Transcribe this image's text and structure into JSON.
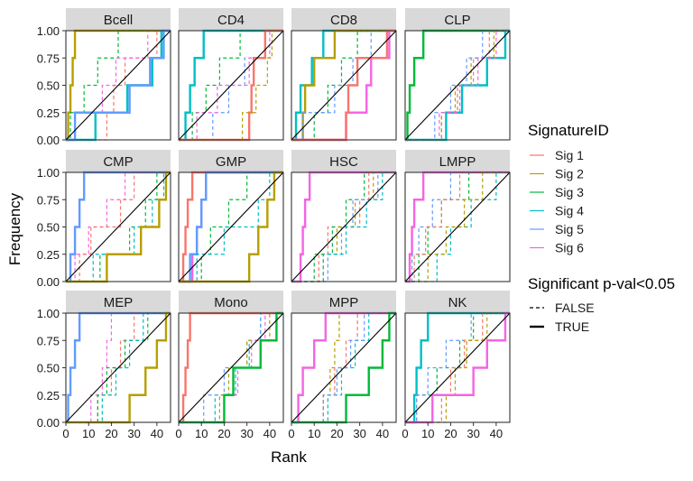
{
  "chart_data": {
    "type": "line",
    "subtype": "step",
    "facet_layout": "3 rows x 4 columns, shared axes",
    "xlabel": "Rank",
    "ylabel": "Frequency",
    "xlim": [
      0,
      46
    ],
    "ylim": [
      0,
      1
    ],
    "x_ticks": [
      0,
      10,
      20,
      30,
      40
    ],
    "y_ticks": [
      0,
      0.25,
      0.5,
      0.75,
      1
    ],
    "y_tick_labels": [
      "0.00",
      "0.25",
      "0.50",
      "0.75",
      "1.00"
    ],
    "reference_line": "diagonal y = x/46",
    "legend_color": {
      "title": "SignatureID",
      "entries": [
        {
          "name": "Sig 1",
          "color": "#F8766D"
        },
        {
          "name": "Sig 2",
          "color": "#B79F00"
        },
        {
          "name": "Sig 3",
          "color": "#00BA38"
        },
        {
          "name": "Sig 4",
          "color": "#00BFC4"
        },
        {
          "name": "Sig 5",
          "color": "#619CFF"
        },
        {
          "name": "Sig 6",
          "color": "#F564E3"
        }
      ]
    },
    "legend_linetype": {
      "title": "Significant p-val<0.05",
      "entries": [
        {
          "name": "FALSE",
          "style": "dashed"
        },
        {
          "name": "TRUE",
          "style": "solid"
        }
      ]
    },
    "panels": [
      {
        "name": "Bcell",
        "series": [
          {
            "sig": 2,
            "significant": true,
            "steps": [
              1,
              2,
              3,
              4
            ]
          },
          {
            "sig": 3,
            "significant": false,
            "steps": [
              2,
              8,
              14,
              23
            ]
          },
          {
            "sig": 1,
            "significant": false,
            "steps": [
              18,
              21,
              26,
              40
            ]
          },
          {
            "sig": 6,
            "significant": false,
            "steps": [
              13,
              16,
              22,
              36
            ]
          },
          {
            "sig": 4,
            "significant": true,
            "steps": [
              13,
              27,
              38,
              42
            ]
          },
          {
            "sig": 5,
            "significant": true,
            "steps": [
              4,
              28,
              37,
              43
            ]
          }
        ]
      },
      {
        "name": "CD4",
        "series": [
          {
            "sig": 4,
            "significant": true,
            "steps": [
              3,
              5,
              7,
              11
            ]
          },
          {
            "sig": 3,
            "significant": false,
            "steps": [
              6,
              12,
              18,
              27
            ]
          },
          {
            "sig": 5,
            "significant": false,
            "steps": [
              15,
              22,
              29,
              38
            ]
          },
          {
            "sig": 6,
            "significant": false,
            "steps": [
              8,
              17,
              31,
              40
            ]
          },
          {
            "sig": 1,
            "significant": true,
            "steps": [
              31,
              32,
              33,
              38
            ]
          },
          {
            "sig": 2,
            "significant": false,
            "steps": [
              28,
              34,
              39,
              41
            ]
          }
        ]
      },
      {
        "name": "CD8",
        "series": [
          {
            "sig": 4,
            "significant": true,
            "steps": [
              2,
              4,
              9,
              14
            ]
          },
          {
            "sig": 2,
            "significant": true,
            "steps": [
              5,
              6,
              10,
              19
            ]
          },
          {
            "sig": 3,
            "significant": false,
            "steps": [
              10,
              16,
              22,
              29
            ]
          },
          {
            "sig": 5,
            "significant": false,
            "steps": [
              5,
              19,
              27,
              35
            ]
          },
          {
            "sig": 6,
            "significant": true,
            "steps": [
              24,
              33,
              35,
              43
            ]
          },
          {
            "sig": 1,
            "significant": true,
            "steps": [
              24,
              25,
              29,
              42
            ]
          }
        ]
      },
      {
        "name": "CLP",
        "series": [
          {
            "sig": 3,
            "significant": true,
            "steps": [
              1,
              2,
              4,
              8
            ]
          },
          {
            "sig": 4,
            "significant": true,
            "steps": [
              18,
              25,
              36,
              44
            ]
          },
          {
            "sig": 1,
            "significant": false,
            "steps": [
              16,
              23,
              30,
              37
            ]
          },
          {
            "sig": 2,
            "significant": false,
            "steps": [
              16,
              22,
              29,
              39
            ]
          },
          {
            "sig": 5,
            "significant": false,
            "steps": [
              13,
              20,
              27,
              34
            ]
          },
          {
            "sig": 6,
            "significant": false,
            "steps": [
              15,
              24,
              32,
              40
            ]
          }
        ]
      },
      {
        "name": "CMP",
        "series": [
          {
            "sig": 5,
            "significant": true,
            "steps": [
              2,
              4,
              6,
              8
            ]
          },
          {
            "sig": 6,
            "significant": false,
            "steps": [
              4,
              10,
              18,
              26
            ]
          },
          {
            "sig": 1,
            "significant": false,
            "steps": [
              6,
              11,
              24,
              30
            ]
          },
          {
            "sig": 3,
            "significant": false,
            "steps": [
              15,
              28,
              35,
              40
            ]
          },
          {
            "sig": 4,
            "significant": false,
            "steps": [
              12,
              30,
              38,
              43
            ]
          },
          {
            "sig": 2,
            "significant": true,
            "steps": [
              18,
              33,
              41,
              44
            ]
          }
        ]
      },
      {
        "name": "GMP",
        "series": [
          {
            "sig": 1,
            "significant": true,
            "steps": [
              2,
              3,
              4,
              6
            ]
          },
          {
            "sig": 6,
            "significant": true,
            "steps": [
              6,
              8,
              10,
              12
            ]
          },
          {
            "sig": 5,
            "significant": true,
            "steps": [
              5,
              8,
              10,
              12
            ]
          },
          {
            "sig": 3,
            "significant": false,
            "steps": [
              10,
              14,
              22,
              30
            ]
          },
          {
            "sig": 4,
            "significant": false,
            "steps": [
              8,
              20,
              35,
              40
            ]
          },
          {
            "sig": 2,
            "significant": true,
            "steps": [
              31,
              35,
              39,
              42
            ]
          }
        ]
      },
      {
        "name": "HSC",
        "series": [
          {
            "sig": 6,
            "significant": true,
            "steps": [
              4,
              5,
              6,
              8
            ]
          },
          {
            "sig": 1,
            "significant": false,
            "steps": [
              12,
              16,
              30,
              34
            ]
          },
          {
            "sig": 3,
            "significant": false,
            "steps": [
              10,
              18,
              24,
              32
            ]
          },
          {
            "sig": 2,
            "significant": false,
            "steps": [
              14,
              20,
              28,
              36
            ]
          },
          {
            "sig": 5,
            "significant": false,
            "steps": [
              16,
              22,
              27,
              38
            ]
          },
          {
            "sig": 4,
            "significant": false,
            "steps": [
              14,
              24,
              33,
              40
            ]
          }
        ]
      },
      {
        "name": "LMPP",
        "series": [
          {
            "sig": 6,
            "significant": true,
            "steps": [
              2,
              3,
              4,
              8
            ]
          },
          {
            "sig": 5,
            "significant": false,
            "steps": [
              3,
              6,
              12,
              20
            ]
          },
          {
            "sig": 3,
            "significant": false,
            "steps": [
              6,
              10,
              16,
              28
            ]
          },
          {
            "sig": 1,
            "significant": false,
            "steps": [
              4,
              9,
              16,
              24
            ]
          },
          {
            "sig": 4,
            "significant": false,
            "steps": [
              14,
              20,
              29,
              40
            ]
          },
          {
            "sig": 2,
            "significant": false,
            "steps": [
              10,
              18,
              26,
              34
            ]
          }
        ]
      },
      {
        "name": "MEP",
        "series": [
          {
            "sig": 5,
            "significant": true,
            "steps": [
              1,
              2,
              4,
              6
            ]
          },
          {
            "sig": 6,
            "significant": false,
            "steps": [
              11,
              16,
              18,
              20
            ]
          },
          {
            "sig": 1,
            "significant": false,
            "steps": [
              14,
              20,
              24,
              30
            ]
          },
          {
            "sig": 3,
            "significant": false,
            "steps": [
              14,
              18,
              26,
              36
            ]
          },
          {
            "sig": 4,
            "significant": false,
            "steps": [
              16,
              22,
              28,
              34
            ]
          },
          {
            "sig": 2,
            "significant": true,
            "steps": [
              28,
              35,
              40,
              44
            ]
          }
        ]
      },
      {
        "name": "Mono",
        "series": [
          {
            "sig": 1,
            "significant": true,
            "steps": [
              2,
              3,
              4,
              5
            ]
          },
          {
            "sig": 4,
            "significant": false,
            "steps": [
              16,
              25,
              31,
              36
            ]
          },
          {
            "sig": 5,
            "significant": false,
            "steps": [
              11,
              20,
              30,
              36
            ]
          },
          {
            "sig": 2,
            "significant": false,
            "steps": [
              18,
              22,
              30,
              40
            ]
          },
          {
            "sig": 6,
            "significant": false,
            "steps": [
              20,
              26,
              32,
              38
            ]
          },
          {
            "sig": 3,
            "significant": true,
            "steps": [
              20,
              24,
              36,
              43
            ]
          }
        ]
      },
      {
        "name": "MPP",
        "series": [
          {
            "sig": 6,
            "significant": true,
            "steps": [
              3,
              5,
              10,
              15
            ]
          },
          {
            "sig": 2,
            "significant": false,
            "steps": [
              14,
              17,
              19,
              21
            ]
          },
          {
            "sig": 1,
            "significant": false,
            "steps": [
              14,
              19,
              24,
              29
            ]
          },
          {
            "sig": 4,
            "significant": false,
            "steps": [
              16,
              22,
              28,
              34
            ]
          },
          {
            "sig": 5,
            "significant": false,
            "steps": [
              14,
              20,
              26,
              32
            ]
          },
          {
            "sig": 3,
            "significant": true,
            "steps": [
              24,
              34,
              40,
              43
            ]
          }
        ]
      },
      {
        "name": "NK",
        "series": [
          {
            "sig": 4,
            "significant": true,
            "steps": [
              4,
              5,
              7,
              10
            ]
          },
          {
            "sig": 3,
            "significant": false,
            "steps": [
              5,
              14,
              24,
              30
            ]
          },
          {
            "sig": 5,
            "significant": false,
            "steps": [
              5,
              10,
              18,
              29
            ]
          },
          {
            "sig": 1,
            "significant": false,
            "steps": [
              16,
              20,
              26,
              34
            ]
          },
          {
            "sig": 2,
            "significant": false,
            "steps": [
              18,
              22,
              27,
              36
            ]
          },
          {
            "sig": 6,
            "significant": true,
            "steps": [
              12,
              30,
              36,
              44
            ]
          }
        ]
      }
    ]
  }
}
